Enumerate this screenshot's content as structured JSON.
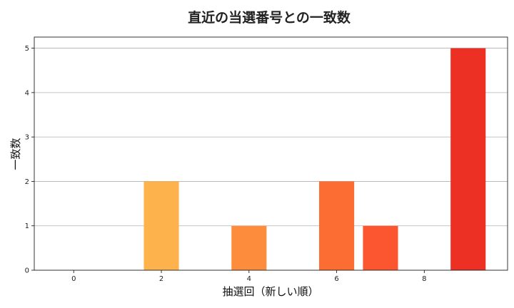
{
  "chart_data": {
    "type": "bar",
    "title": "直近の当選番号との一致数",
    "xlabel": "抽選回（新しい順）",
    "ylabel": "一致数",
    "x": [
      0,
      1,
      2,
      3,
      4,
      5,
      6,
      7,
      8,
      9
    ],
    "values": [
      0,
      0,
      2,
      0,
      1,
      0,
      2,
      1,
      0,
      5
    ],
    "colors": [
      "#ffeda0",
      "#fed976",
      "#feb24c",
      "#fd9c44",
      "#fd8d3c",
      "#fc7a36",
      "#fc6d34",
      "#fb5630",
      "#f0442b",
      "#ec3023"
    ],
    "xticks": [
      0,
      2,
      4,
      6,
      8
    ],
    "yticks": [
      0,
      1,
      2,
      3,
      4,
      5
    ],
    "xlim": [
      -0.9,
      9.9
    ],
    "ylim": [
      0,
      5.25
    ],
    "grid": "y"
  }
}
